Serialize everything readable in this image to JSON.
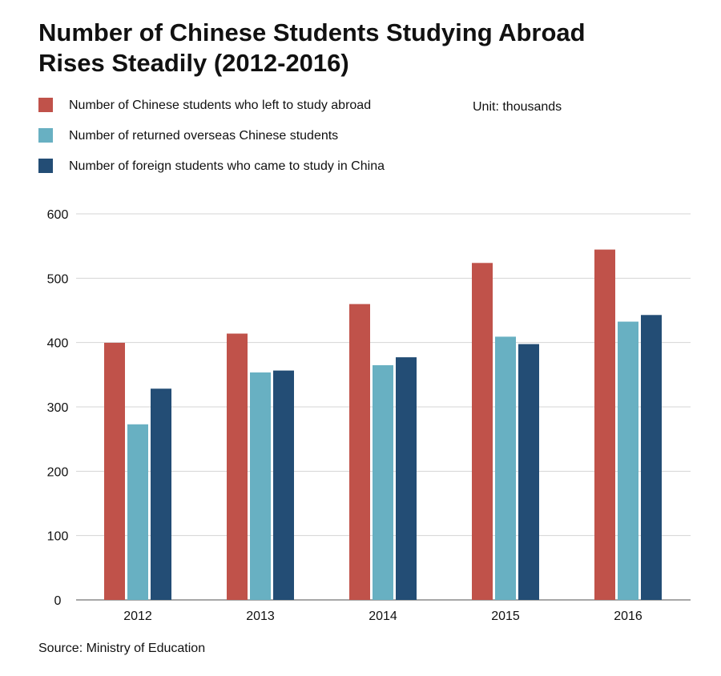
{
  "chart_data": {
    "type": "bar",
    "title": "Number of Chinese Students Studying Abroad Rises Steadily (2012-2016)",
    "unit_label": "Unit: thousands",
    "source": "Source: Ministry of Education",
    "categories": [
      "2012",
      "2013",
      "2014",
      "2015",
      "2016"
    ],
    "series": [
      {
        "name": "Number of Chinese students who left to study abroad",
        "color": "#c0524a",
        "values": [
          399.6,
          413.9,
          459.8,
          523.7,
          544.5
        ]
      },
      {
        "name": "Number of returned overseas Chinese students",
        "color": "#68b0c2",
        "values": [
          272.9,
          353.5,
          364.8,
          409.1,
          432.5
        ]
      },
      {
        "name": "Number of foreign students who came to study in China",
        "color": "#234d75",
        "values": [
          328.3,
          356.5,
          377.1,
          397.6,
          442.8
        ]
      }
    ],
    "ylim": [
      0,
      600
    ],
    "yticks": [
      0,
      100,
      200,
      300,
      400,
      500,
      600
    ],
    "grid": true,
    "xlabel": "",
    "ylabel": ""
  }
}
